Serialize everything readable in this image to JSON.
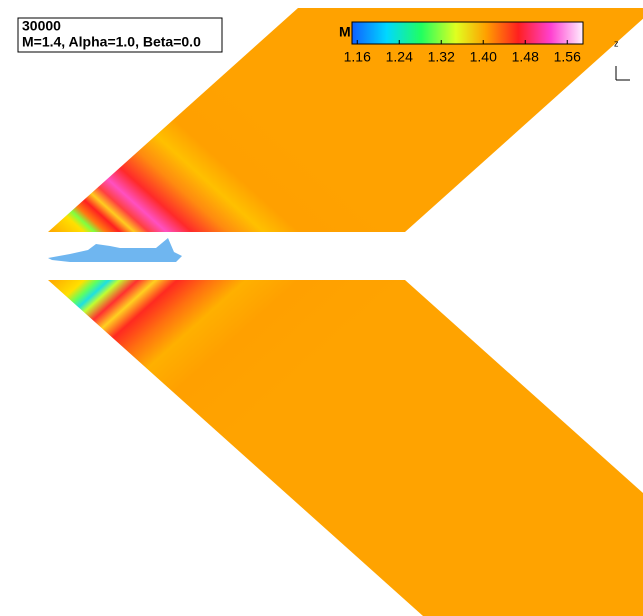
{
  "chart_data": {
    "type": "contour",
    "title": [
      "30000",
      "M=1.4, Alpha=1.0, Beta=0.0"
    ],
    "colorbar_label": "M",
    "clim": [
      1.15,
      1.59
    ],
    "cticks": [
      1.16,
      1.24,
      1.32,
      {
        "value": 1.4,
        "label": "1.40"
      },
      1.48,
      1.56
    ],
    "axis_label": "z"
  }
}
